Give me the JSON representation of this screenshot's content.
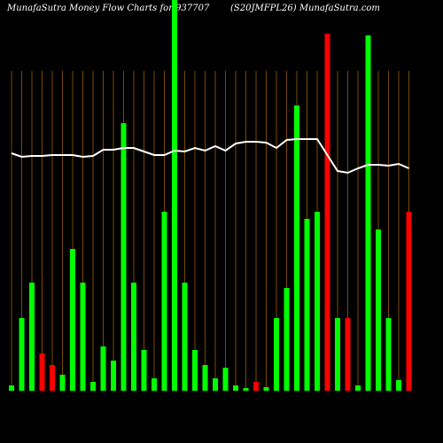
{
  "chart_data": {
    "type": "bar",
    "title": "MunafaSutra  Money Flow  Charts for 937707",
    "subtitle": "(S20JMFPL26) MunafaSutra.com",
    "categories": [
      null,
      null,
      null,
      null,
      null,
      null,
      null,
      null,
      null,
      null,
      null,
      null,
      null,
      null,
      null,
      null,
      null,
      null,
      null,
      null,
      null,
      null,
      null,
      null,
      null,
      null,
      null,
      null,
      null,
      null,
      null,
      null,
      null,
      null,
      null,
      null,
      null,
      null,
      null,
      null
    ],
    "values": [
      6,
      82,
      122,
      42,
      29,
      18,
      160,
      122,
      10,
      50,
      34,
      302,
      122,
      46,
      14,
      202,
      441,
      122,
      46,
      29,
      14,
      26,
      6,
      3,
      10,
      4,
      82,
      116,
      322,
      194,
      202,
      403,
      82,
      82,
      6,
      401,
      182,
      82,
      12,
      202
    ],
    "colors": [
      "#00ff00",
      "#00ff00",
      "#00ff00",
      "#ff0000",
      "#ff0000",
      "#00ff00",
      "#00ff00",
      "#00ff00",
      "#00ff00",
      "#00ff00",
      "#00ff00",
      "#00ff00",
      "#00ff00",
      "#00ff00",
      "#00ff00",
      "#00ff00",
      "#00ff00",
      "#00ff00",
      "#00ff00",
      "#00ff00",
      "#00ff00",
      "#00ff00",
      "#00ff00",
      "#00ff00",
      "#ff0000",
      "#00ff00",
      "#00ff00",
      "#00ff00",
      "#00ff00",
      "#00ff00",
      "#00ff00",
      "#ff0000",
      "#00ff00",
      "#ff0000",
      "#00ff00",
      "#00ff00",
      "#00ff00",
      "#00ff00",
      "#00ff00",
      "#ff0000"
    ],
    "line": {
      "color": "#ffffff",
      "values": [
        268,
        264,
        265,
        265,
        266,
        266,
        266,
        264,
        265,
        272,
        272,
        274,
        274,
        270,
        266,
        266,
        271,
        270,
        274,
        271,
        276,
        271,
        279,
        281,
        281,
        280,
        274,
        283,
        284,
        284,
        284,
        266,
        248,
        246,
        251,
        255,
        255,
        254,
        256,
        251
      ]
    },
    "ylim": [
      0,
      441
    ],
    "grid": true
  }
}
